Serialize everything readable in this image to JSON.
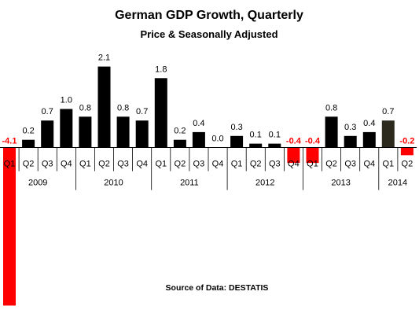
{
  "chart_data": {
    "type": "bar",
    "title": "German GDP Growth, Quarterly",
    "subtitle": "Price & Seasonally Adjusted",
    "source": "Source of Data: DESTATIS",
    "categories": [
      "Q1",
      "Q2",
      "Q3",
      "Q4",
      "Q1",
      "Q2",
      "Q3",
      "Q4",
      "Q1",
      "Q2",
      "Q3",
      "Q4",
      "Q1",
      "Q2",
      "Q3",
      "Q4",
      "Q1",
      "Q2",
      "Q3",
      "Q4",
      "Q1",
      "Q2"
    ],
    "years": [
      {
        "label": "2009",
        "start": 0,
        "count": 4
      },
      {
        "label": "2010",
        "start": 4,
        "count": 4
      },
      {
        "label": "2011",
        "start": 8,
        "count": 4
      },
      {
        "label": "2012",
        "start": 12,
        "count": 4
      },
      {
        "label": "2013",
        "start": 16,
        "count": 4
      },
      {
        "label": "2014",
        "start": 20,
        "count": 2
      }
    ],
    "values": [
      -4.1,
      0.2,
      0.7,
      1.0,
      0.8,
      2.1,
      0.8,
      0.7,
      1.8,
      0.2,
      0.4,
      0.0,
      0.3,
      0.1,
      0.1,
      -0.4,
      -0.4,
      0.8,
      0.3,
      0.4,
      0.7,
      -0.2
    ],
    "value_labels": [
      "-4.1",
      "0.2",
      "0.7",
      "1.0",
      "0.8",
      "2.1",
      "0.8",
      "0.7",
      "1.8",
      "0.2",
      "0.4",
      "0.0",
      "0.3",
      "0.1",
      "0.1",
      "-0.4",
      "-0.4",
      "0.8",
      "0.3",
      "0.4",
      "0.7",
      "-0.2"
    ],
    "colors": {
      "positive": "#000000",
      "negative": "#ff0000",
      "negative_label": "#ff0000",
      "latest_positive": "#2b2a1c"
    },
    "grid": false,
    "legend": "none"
  }
}
